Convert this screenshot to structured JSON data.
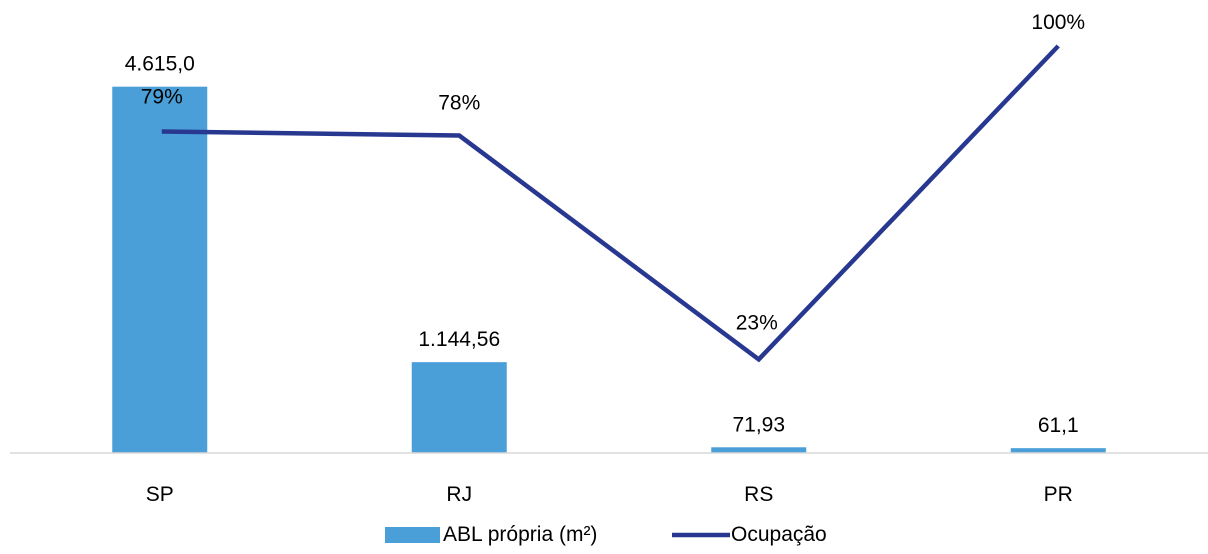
{
  "chart_data": {
    "type": "bar",
    "categories": [
      "SP",
      "RJ",
      "RS",
      "PR"
    ],
    "series": [
      {
        "name": "ABL própria (m²)",
        "type": "bar",
        "values": [
          4615.0,
          1144.56,
          71.93,
          61.1
        ],
        "labels": [
          "4.615,0",
          "1.144,56",
          "71,93",
          "61,1"
        ],
        "color": "#4a9fd8"
      },
      {
        "name": "Ocupação",
        "type": "line",
        "values": [
          79,
          78,
          23,
          100
        ],
        "labels": [
          "79%",
          "78%",
          "23%",
          "100%"
        ],
        "color": "#283891"
      }
    ],
    "bar_axis_range": [
      0,
      4800
    ],
    "line_axis_range": [
      0,
      100
    ],
    "grid": false,
    "legend_position": "bottom"
  }
}
